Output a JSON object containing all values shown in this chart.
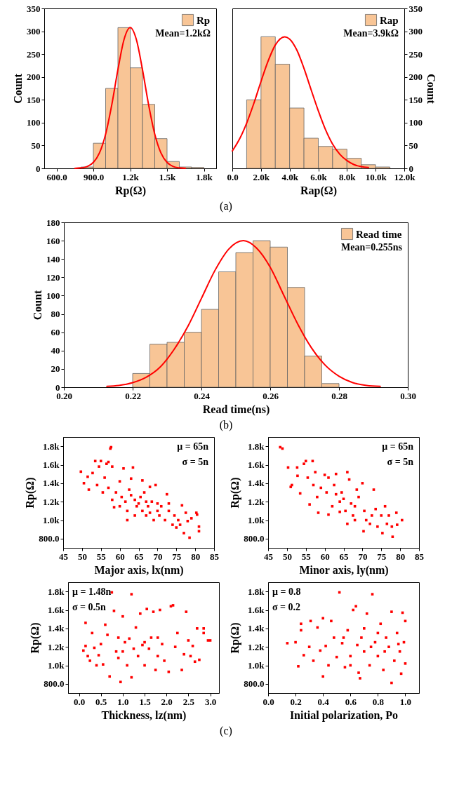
{
  "chart_data": [
    {
      "type": "histogram",
      "xlabel": "Rp(Ω)",
      "ylabel": "Count",
      "xlim": [
        500,
        1900
      ],
      "xticks": [
        {
          "value": 600,
          "label": "600.0"
        },
        {
          "value": 900,
          "label": "900.0"
        },
        {
          "value": 1200,
          "label": "1.2k"
        },
        {
          "value": 1500,
          "label": "1.5k"
        },
        {
          "value": 1800,
          "label": "1.8k"
        }
      ],
      "ylim": [
        0,
        350
      ],
      "yticks": [
        0,
        50,
        100,
        150,
        200,
        250,
        300,
        350
      ],
      "legend": "top right",
      "annotations": [
        "Mean=1.2kΩ",
        "(a)"
      ],
      "series": [
        {
          "type": "histogram",
          "name": "Rp",
          "color": "#f8c596",
          "bins": [
            800,
            900,
            1000,
            1100,
            1200,
            1300,
            1400,
            1500,
            1600,
            1700,
            1800
          ],
          "values": [
            3,
            55,
            175,
            308,
            220,
            140,
            65,
            15,
            3,
            2
          ]
        },
        {
          "type": "line",
          "color": "#ff0000",
          "x": [
            750,
            800,
            850,
            900,
            950,
            1000,
            1050,
            1100,
            1150,
            1200,
            1250,
            1300,
            1350,
            1400,
            1450,
            1500,
            1550,
            1600,
            1650
          ],
          "values": [
            0,
            1,
            4,
            13,
            34,
            75,
            139,
            216,
            282,
            308,
            282,
            216,
            139,
            75,
            34,
            13,
            4,
            1,
            0
          ]
        }
      ]
    },
    {
      "type": "histogram",
      "xlabel": "Rap(Ω)",
      "y2label": "Count",
      "xlim": [
        0,
        12000
      ],
      "xticks": [
        {
          "value": 0,
          "label": "0.0"
        },
        {
          "value": 2000,
          "label": "2.0k"
        },
        {
          "value": 4000,
          "label": "4.0k"
        },
        {
          "value": 6000,
          "label": "6.0k"
        },
        {
          "value": 8000,
          "label": "8.0k"
        },
        {
          "value": 10000,
          "label": "10.0k"
        },
        {
          "value": 12000,
          "label": "12.0k"
        }
      ],
      "y2lim": [
        0,
        350
      ],
      "y2ticks": [
        0,
        50,
        100,
        150,
        200,
        250,
        300,
        350
      ],
      "legend": "top right",
      "annotations": [
        "Mean=3.9kΩ"
      ],
      "series": [
        {
          "type": "histogram",
          "name": "Rap",
          "color": "#f8c596",
          "axis": "y2",
          "bins": [
            1000,
            2000,
            3000,
            4000,
            5000,
            6000,
            7000,
            8000,
            9000,
            10000,
            11000
          ],
          "values": [
            150,
            288,
            228,
            132,
            66,
            48,
            42,
            22,
            8,
            3
          ]
        },
        {
          "type": "line",
          "color": "#ff0000",
          "axis": "y2",
          "x": [
            0,
            500,
            1000,
            1500,
            2000,
            2500,
            3000,
            3660,
            4000,
            4500,
            5000,
            5500,
            6000,
            6500,
            7000,
            7500,
            8000,
            8500,
            9000,
            9500
          ],
          "values": [
            38,
            64,
            99,
            142,
            190,
            235,
            270,
            288,
            283,
            259,
            219,
            172,
            126,
            85,
            53,
            31,
            17,
            8,
            4,
            2
          ]
        }
      ]
    },
    {
      "type": "histogram",
      "xlabel": "Read time(ns)",
      "ylabel": "Count",
      "xlim": [
        0.2,
        0.3
      ],
      "xticks": [
        {
          "value": 0.2,
          "label": "0.20"
        },
        0.22,
        0.24,
        0.26,
        0.28,
        {
          "value": 0.3,
          "label": "0.30"
        }
      ],
      "ylim": [
        0,
        180
      ],
      "yticks": [
        0,
        20,
        40,
        60,
        80,
        100,
        120,
        140,
        160,
        180
      ],
      "legend": "top right",
      "annotations": [
        "Mean=0.255ns",
        "(b)"
      ],
      "series": [
        {
          "type": "histogram",
          "name": "Read time",
          "color": "#f8c596",
          "bins": [
            0.22,
            0.225,
            0.23,
            0.235,
            0.24,
            0.245,
            0.25,
            0.255,
            0.26,
            0.265,
            0.27,
            0.275,
            0.28
          ],
          "values": [
            15,
            47,
            49,
            60,
            85,
            126,
            147,
            160,
            153,
            109,
            34,
            4
          ]
        },
        {
          "type": "line",
          "color": "#ff0000",
          "x": [
            0.2125,
            0.216,
            0.22,
            0.224,
            0.228,
            0.232,
            0.236,
            0.24,
            0.244,
            0.248,
            0.2522,
            0.256,
            0.26,
            0.264,
            0.268,
            0.272,
            0.276,
            0.28,
            0.284,
            0.288,
            0.292
          ],
          "values": [
            1,
            2,
            5,
            11,
            22,
            41,
            66,
            97,
            128,
            151,
            160,
            152,
            131,
            100,
            69,
            43,
            24,
            12,
            5,
            2,
            1
          ]
        }
      ]
    },
    {
      "type": "scatter",
      "xlabel": "Major axis, lx(nm)",
      "ylabel": "Rp(Ω)",
      "xlim": [
        45,
        85
      ],
      "xticks": [
        45,
        50,
        55,
        60,
        65,
        70,
        75,
        80,
        85
      ],
      "ylim": [
        700,
        1900
      ],
      "yticks": [
        {
          "value": 800,
          "label": "800.0"
        },
        {
          "value": 1000,
          "label": "1.0k"
        },
        {
          "value": 1200,
          "label": "1.2k"
        },
        {
          "value": 1400,
          "label": "1.4k"
        },
        {
          "value": 1600,
          "label": "1.6k"
        },
        {
          "value": 1800,
          "label": "1.8k"
        }
      ],
      "marker": "square",
      "color": "#ff0000",
      "annotations": [
        "μ = 65n",
        "σ = 5n"
      ],
      "x": [
        57.7,
        57.5,
        49.7,
        50.5,
        51.5,
        51.8,
        52.8,
        53.5,
        55,
        54.5,
        56.5,
        57,
        54,
        55.5,
        56,
        58,
        58.5,
        61,
        63.5,
        62,
        60,
        59,
        60.5,
        61.5,
        62.5,
        63,
        64,
        64.5,
        65,
        65.5,
        66,
        66.5,
        67,
        67.5,
        68,
        68.5,
        69,
        69.5,
        70,
        70.5,
        71,
        72,
        72.5,
        73,
        74,
        74.5,
        75,
        75.5,
        76,
        76.5,
        77,
        77.5,
        78,
        78.5,
        79,
        80.3,
        80.5,
        81,
        81,
        63,
        66,
        60,
        62,
        58,
        64,
        67,
        70,
        73,
        57,
        68
      ],
      "values": [
        1790,
        1775,
        1525,
        1400,
        1470,
        1330,
        1510,
        1640,
        1640,
        1580,
        1610,
        1630,
        1380,
        1300,
        1460,
        1580,
        1140,
        1560,
        1570,
        1000,
        1420,
        1300,
        1250,
        1200,
        1330,
        1270,
        1220,
        1150,
        1180,
        1250,
        1100,
        1300,
        1050,
        1150,
        1080,
        1200,
        1000,
        1380,
        1100,
        1050,
        1150,
        1000,
        1280,
        1100,
        950,
        1050,
        920,
        1000,
        950,
        1160,
        860,
        1080,
        990,
        810,
        1020,
        1080,
        1060,
        930,
        880,
        1450,
        1430,
        1150,
        1100,
        1220,
        1050,
        1200,
        1180,
        1180,
        1350,
        1360
      ]
    },
    {
      "type": "scatter",
      "xlabel": "Minor axis, ly(nm)",
      "ylabel": "Rp(Ω)",
      "xlim": [
        45,
        85
      ],
      "xticks": [
        45,
        50,
        55,
        60,
        65,
        70,
        75,
        80,
        85
      ],
      "ylim": [
        700,
        1900
      ],
      "yticks": [
        {
          "value": 800,
          "label": "800.0"
        },
        {
          "value": 1000,
          "label": "1.0k"
        },
        {
          "value": 1200,
          "label": "1.2k"
        },
        {
          "value": 1400,
          "label": "1.4k"
        },
        {
          "value": 1600,
          "label": "1.6k"
        },
        {
          "value": 1800,
          "label": "1.8k"
        }
      ],
      "marker": "square",
      "color": "#ff0000",
      "annotations": [
        "μ = 65n",
        "σ = 5n"
      ],
      "x": [
        48.2,
        48.8,
        50.3,
        51,
        51.3,
        52.7,
        52.8,
        53.5,
        54.5,
        55,
        56.8,
        55.5,
        56,
        57.5,
        58.3,
        59,
        60,
        61,
        62,
        63,
        63,
        64,
        64.5,
        65,
        65.5,
        66,
        66.5,
        67,
        67.5,
        68,
        68.5,
        69,
        70,
        70.3,
        70.5,
        71,
        72,
        72.5,
        73,
        73.5,
        74,
        75,
        75.3,
        76,
        76.5,
        77,
        77.8,
        78,
        79,
        79.2,
        80.5,
        58,
        60.5,
        62.5,
        66,
        61,
        68,
        64,
        57
      ],
      "values": [
        1790,
        1775,
        1570,
        1360,
        1380,
        1570,
        1480,
        1290,
        1610,
        1640,
        1640,
        1460,
        1170,
        1520,
        1080,
        1350,
        1490,
        1460,
        1150,
        1500,
        1280,
        1200,
        1300,
        1230,
        1100,
        1520,
        1440,
        1180,
        1050,
        1000,
        1330,
        1250,
        1400,
        880,
        1100,
        1000,
        960,
        1050,
        1330,
        1120,
        930,
        1050,
        860,
        1150,
        960,
        1050,
        930,
        820,
        1080,
        950,
        1000,
        1250,
        1300,
        1380,
        960,
        1060,
        1150,
        1090,
        1380
      ]
    },
    {
      "type": "scatter",
      "xlabel": "Thickness, lz(nm)",
      "ylabel": "Rp(Ω)",
      "xlim": [
        -0.25,
        3.2
      ],
      "xticks": [
        {
          "value": 0,
          "label": "0.0"
        },
        0.5,
        {
          "value": 1,
          "label": "1.0"
        },
        1.5,
        {
          "value": 2,
          "label": "2.0"
        },
        2.5,
        {
          "value": 3,
          "label": "3.0"
        }
      ],
      "ylim": [
        700,
        1900
      ],
      "yticks": [
        {
          "value": 800,
          "label": "800.0"
        },
        {
          "value": 1000,
          "label": "1.0k"
        },
        {
          "value": 1200,
          "label": "1.2k"
        },
        {
          "value": 1400,
          "label": "1.4k"
        },
        {
          "value": 1600,
          "label": "1.6k"
        },
        {
          "value": 1800,
          "label": "1.8k"
        }
      ],
      "marker": "square",
      "color": "#ff0000",
      "annotations": [
        "μ = 1.48n",
        "σ = 0.5n",
        "(c)"
      ],
      "x": [
        0.1,
        0.15,
        0.15,
        0.2,
        0.25,
        0.3,
        0.35,
        0.4,
        0.45,
        0.5,
        0.55,
        0.6,
        0.65,
        0.7,
        0.75,
        0.8,
        0.85,
        0.9,
        0.95,
        1.0,
        1.05,
        1.1,
        1.15,
        1.2,
        1.2,
        1.25,
        1.3,
        1.35,
        1.4,
        1.45,
        1.5,
        1.55,
        1.6,
        1.65,
        1.7,
        1.75,
        1.8,
        1.85,
        1.9,
        1.95,
        2.05,
        2.1,
        2.15,
        2.2,
        2.25,
        2.35,
        2.4,
        2.45,
        2.5,
        2.55,
        2.6,
        2.65,
        2.7,
        2.75,
        2.85,
        2.85,
        2.95,
        3.0,
        1.5,
        1.0,
        1.8,
        0.9
      ],
      "values": [
        1160,
        1460,
        1210,
        1100,
        1050,
        1350,
        1190,
        1000,
        1110,
        1230,
        1010,
        1440,
        1330,
        880,
        1790,
        1590,
        1150,
        1080,
        820,
        1530,
        1250,
        1000,
        1290,
        1770,
        870,
        1180,
        1410,
        1100,
        1560,
        1220,
        1000,
        1610,
        1180,
        1300,
        1580,
        950,
        1100,
        1600,
        1230,
        1050,
        930,
        1640,
        1650,
        1200,
        1350,
        950,
        1120,
        1580,
        1270,
        1100,
        1210,
        1040,
        1400,
        1060,
        1400,
        1350,
        1270,
        1270,
        1250,
        1150,
        1300,
        1300
      ]
    },
    {
      "type": "scatter",
      "xlabel": "Initial polarization, Po",
      "ylabel": "Rp(Ω)",
      "xlim": [
        0,
        1.1
      ],
      "xticks": [
        {
          "value": 0,
          "label": "0.0"
        },
        0.2,
        0.4,
        0.6,
        0.8,
        {
          "value": 1,
          "label": "1.0"
        }
      ],
      "ylim": [
        700,
        1900
      ],
      "yticks": [
        {
          "value": 800,
          "label": "800.0"
        },
        {
          "value": 1000,
          "label": "1.0k"
        },
        {
          "value": 1200,
          "label": "1.2k"
        },
        {
          "value": 1400,
          "label": "1.4k"
        },
        {
          "value": 1600,
          "label": "1.6k"
        },
        {
          "value": 1800,
          "label": "1.8k"
        }
      ],
      "marker": "square",
      "color": "#ff0000",
      "annotations": [
        "μ = 0.8",
        "σ = 0.2"
      ],
      "x": [
        0.14,
        0.2,
        0.24,
        0.24,
        0.22,
        0.26,
        0.3,
        0.31,
        0.33,
        0.36,
        0.38,
        0.4,
        0.4,
        0.42,
        0.44,
        0.46,
        0.48,
        0.5,
        0.52,
        0.54,
        0.56,
        0.58,
        0.6,
        0.62,
        0.64,
        0.66,
        0.67,
        0.68,
        0.7,
        0.72,
        0.74,
        0.76,
        0.78,
        0.8,
        0.82,
        0.84,
        0.86,
        0.88,
        0.9,
        0.9,
        0.92,
        0.94,
        0.96,
        0.97,
        0.98,
        0.99,
        1.0,
        1.0,
        0.75,
        0.85,
        0.65,
        0.95,
        0.55,
        0.7,
        0.8,
        0.6
      ],
      "values": [
        1240,
        1250,
        1450,
        1380,
        990,
        1110,
        1200,
        1480,
        1050,
        1410,
        1160,
        880,
        1510,
        1210,
        1000,
        1480,
        1300,
        1090,
        1790,
        1240,
        980,
        1380,
        1100,
        1600,
        1640,
        920,
        860,
        1300,
        1150,
        1560,
        1000,
        1770,
        1250,
        1100,
        1450,
        950,
        1300,
        1200,
        810,
        1580,
        1050,
        1350,
        1150,
        910,
        1570,
        1250,
        1020,
        1480,
        1200,
        1150,
        1220,
        1230,
        1300,
        1400,
        1350,
        1000
      ]
    }
  ]
}
